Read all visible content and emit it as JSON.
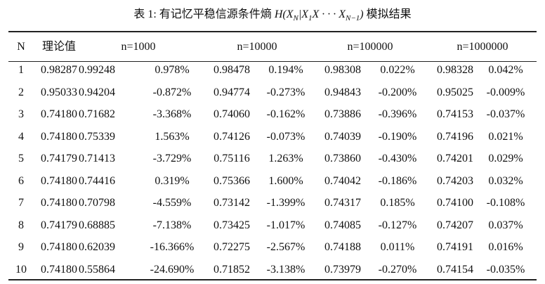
{
  "caption": {
    "prefix": "表 1: 有记忆平稳信源条件熵",
    "formula": [
      "H(X",
      "N",
      "|X",
      "1",
      "X · · · X",
      "N−1",
      ")"
    ],
    "suffix": "模拟结果"
  },
  "table": {
    "header": [
      "N",
      "理论值",
      "n=1000",
      "n=10000",
      "n=100000",
      "n=1000000"
    ],
    "rows": [
      [
        "1",
        "0.98287",
        "0.99248",
        "0.978%",
        "0.98478",
        "0.194%",
        "0.98308",
        "0.022%",
        "0.98328",
        "0.042%"
      ],
      [
        "2",
        "0.95033",
        "0.94204",
        "-0.872%",
        "0.94774",
        "-0.273%",
        "0.94843",
        "-0.200%",
        "0.95025",
        "-0.009%"
      ],
      [
        "3",
        "0.74180",
        "0.71682",
        "-3.368%",
        "0.74060",
        "-0.162%",
        "0.73886",
        "-0.396%",
        "0.74153",
        "-0.037%"
      ],
      [
        "4",
        "0.74180",
        "0.75339",
        "1.563%",
        "0.74126",
        "-0.073%",
        "0.74039",
        "-0.190%",
        "0.74196",
        "0.021%"
      ],
      [
        "5",
        "0.74179",
        "0.71413",
        "-3.729%",
        "0.75116",
        "1.263%",
        "0.73860",
        "-0.430%",
        "0.74201",
        "0.029%"
      ],
      [
        "6",
        "0.74180",
        "0.74416",
        "0.319%",
        "0.75366",
        "1.600%",
        "0.74042",
        "-0.186%",
        "0.74203",
        "0.032%"
      ],
      [
        "7",
        "0.74180",
        "0.70798",
        "-4.559%",
        "0.73142",
        "-1.399%",
        "0.74317",
        "0.185%",
        "0.74100",
        "-0.108%"
      ],
      [
        "8",
        "0.74179",
        "0.68885",
        "-7.138%",
        "0.73425",
        "-1.017%",
        "0.74085",
        "-0.127%",
        "0.74207",
        "0.037%"
      ],
      [
        "9",
        "0.74180",
        "0.62039",
        "-16.366%",
        "0.72275",
        "-2.567%",
        "0.74188",
        "0.011%",
        "0.74191",
        "0.016%"
      ],
      [
        "10",
        "0.74180",
        "0.55864",
        "-24.690%",
        "0.71852",
        "-3.138%",
        "0.73979",
        "-0.270%",
        "0.74154",
        "-0.035%"
      ]
    ]
  }
}
